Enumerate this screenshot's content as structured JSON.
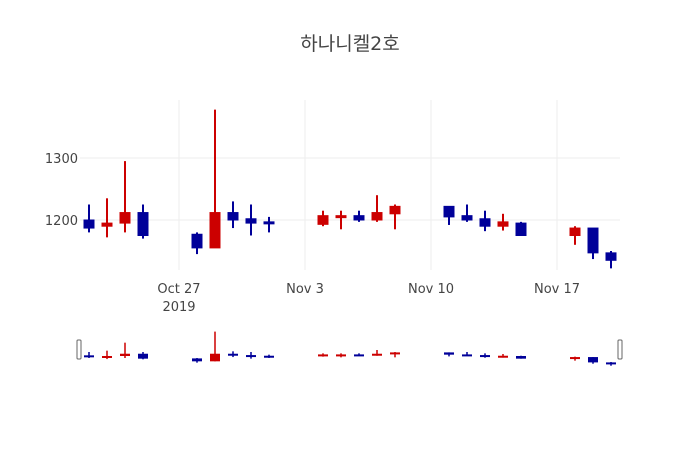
{
  "title": "하나니켈2호",
  "colors": {
    "increasing": "#cc0000",
    "decreasing": "#000099",
    "grid": "#eeeeee",
    "text": "#444444"
  },
  "chart_data": {
    "type": "candlestick",
    "title": "하나니켈2호",
    "xlabel": "",
    "ylabel": "",
    "ylim": [
      1140,
      1390
    ],
    "y_ticks": [
      1200,
      1300
    ],
    "x_ticks": [
      {
        "date": "2019-10-27",
        "label": "Oct 27",
        "sublabel": "2019"
      },
      {
        "date": "2019-11-03",
        "label": "Nov 3"
      },
      {
        "date": "2019-11-10",
        "label": "Nov 10"
      },
      {
        "date": "2019-11-17",
        "label": "Nov 17"
      }
    ],
    "grid": true,
    "rangeslider": true,
    "candles": [
      {
        "date": "2019-10-22",
        "open": 1200,
        "high": 1225,
        "low": 1180,
        "close": 1187
      },
      {
        "date": "2019-10-23",
        "open": 1190,
        "high": 1235,
        "low": 1172,
        "close": 1195
      },
      {
        "date": "2019-10-24",
        "open": 1195,
        "high": 1295,
        "low": 1180,
        "close": 1212
      },
      {
        "date": "2019-10-25",
        "open": 1212,
        "high": 1225,
        "low": 1170,
        "close": 1175
      },
      {
        "date": "2019-10-28",
        "open": 1177,
        "high": 1180,
        "low": 1145,
        "close": 1155
      },
      {
        "date": "2019-10-29",
        "open": 1155,
        "high": 1378,
        "low": 1155,
        "close": 1212
      },
      {
        "date": "2019-10-30",
        "open": 1212,
        "high": 1230,
        "low": 1187,
        "close": 1200
      },
      {
        "date": "2019-10-31",
        "open": 1202,
        "high": 1225,
        "low": 1175,
        "close": 1195
      },
      {
        "date": "2019-11-01",
        "open": 1197,
        "high": 1205,
        "low": 1180,
        "close": 1195
      },
      {
        "date": "2019-11-04",
        "open": 1193,
        "high": 1215,
        "low": 1190,
        "close": 1207
      },
      {
        "date": "2019-11-05",
        "open": 1205,
        "high": 1215,
        "low": 1185,
        "close": 1207
      },
      {
        "date": "2019-11-06",
        "open": 1207,
        "high": 1215,
        "low": 1197,
        "close": 1200
      },
      {
        "date": "2019-11-07",
        "open": 1200,
        "high": 1240,
        "low": 1197,
        "close": 1212
      },
      {
        "date": "2019-11-08",
        "open": 1210,
        "high": 1225,
        "low": 1185,
        "close": 1222
      },
      {
        "date": "2019-11-11",
        "open": 1222,
        "high": 1222,
        "low": 1192,
        "close": 1205
      },
      {
        "date": "2019-11-12",
        "open": 1207,
        "high": 1225,
        "low": 1197,
        "close": 1200
      },
      {
        "date": "2019-11-13",
        "open": 1202,
        "high": 1215,
        "low": 1182,
        "close": 1190
      },
      {
        "date": "2019-11-14",
        "open": 1190,
        "high": 1210,
        "low": 1183,
        "close": 1197
      },
      {
        "date": "2019-11-15",
        "open": 1195,
        "high": 1197,
        "low": 1175,
        "close": 1175
      },
      {
        "date": "2019-11-18",
        "open": 1175,
        "high": 1190,
        "low": 1160,
        "close": 1187
      },
      {
        "date": "2019-11-19",
        "open": 1187,
        "high": 1187,
        "low": 1137,
        "close": 1147
      },
      {
        "date": "2019-11-20",
        "open": 1147,
        "high": 1150,
        "low": 1122,
        "close": 1135
      }
    ]
  }
}
